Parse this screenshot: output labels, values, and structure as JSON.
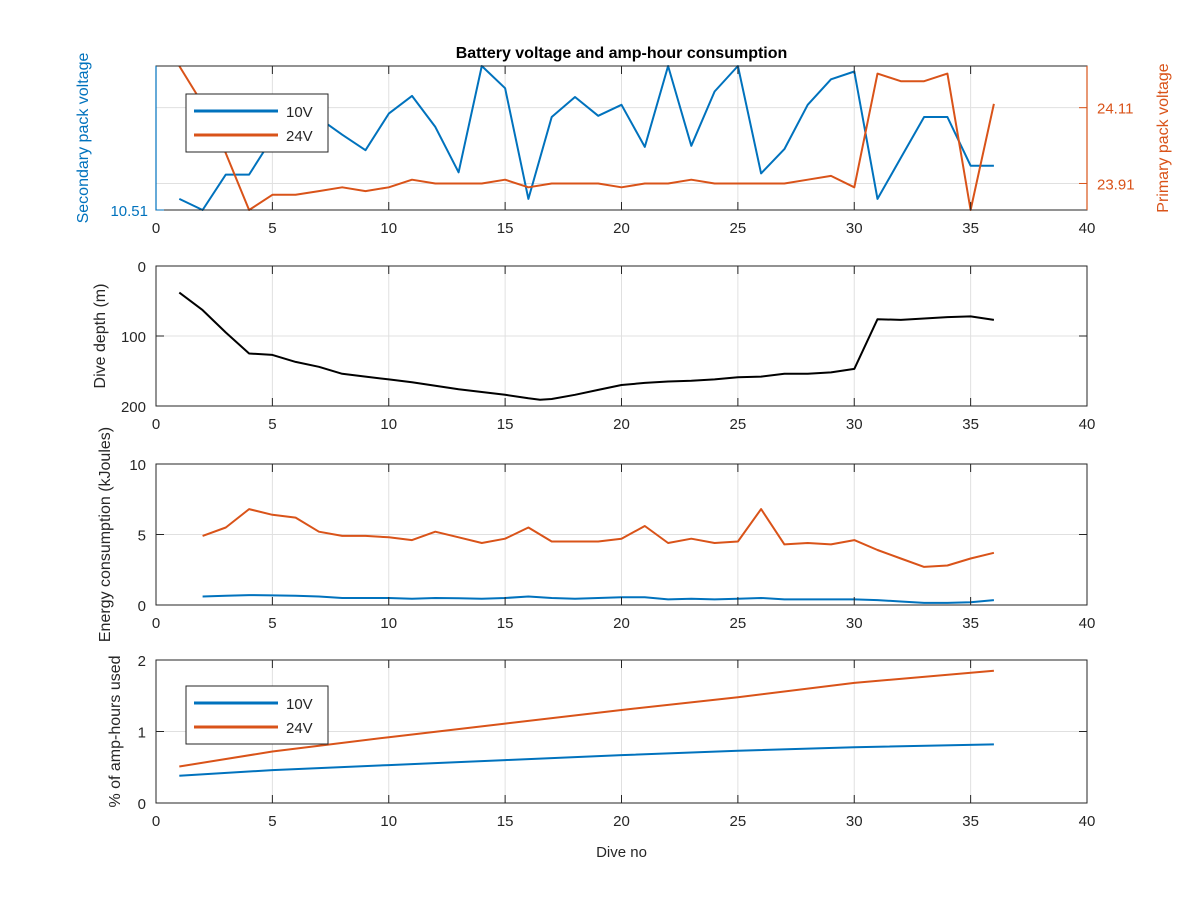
{
  "colors": {
    "c10": "#0072bd",
    "c24": "#d95319",
    "black": "#000000",
    "grid": "#e0e0e0",
    "axis": "#262626"
  },
  "chart_data": [
    {
      "type": "line",
      "title": "Battery voltage and amp-hour consumption",
      "xlabel": "",
      "ylabel_left": "Secondary pack voltage",
      "ylabel_right": "Primary pack voltage",
      "xlim": [
        0,
        40
      ],
      "xticks": [
        "0",
        "5",
        "10",
        "15",
        "20",
        "25",
        "30",
        "35",
        "40"
      ],
      "yticks_left": [
        "10.51"
      ],
      "yticks_right": [
        "23.91",
        "24.11"
      ],
      "grid": true,
      "legend": {
        "position": "top-left",
        "entries": [
          "10V",
          "24V"
        ]
      },
      "series": [
        {
          "name": "10V",
          "axis": "left",
          "color": "#0072bd",
          "x": [
            1,
            2,
            3,
            4,
            5,
            6,
            7,
            8,
            9,
            10,
            11,
            12,
            13,
            14,
            15,
            16,
            17,
            18,
            19,
            20,
            21,
            22,
            23,
            24,
            25,
            26,
            27,
            28,
            29,
            30,
            31,
            32,
            33,
            34,
            35,
            36
          ],
          "y": [
            10.52,
            10.51,
            10.542,
            10.542,
            10.575,
            10.598,
            10.593,
            10.578,
            10.564,
            10.597,
            10.613,
            10.585,
            10.544,
            10.64,
            10.62,
            10.52,
            10.594,
            10.612,
            10.595,
            10.605,
            10.567,
            10.64,
            10.568,
            10.617,
            10.64,
            10.543,
            10.565,
            10.605,
            10.628,
            10.635,
            10.52,
            10.557,
            10.594,
            10.594,
            10.55,
            10.55
          ]
        },
        {
          "name": "24V",
          "axis": "right",
          "color": "#d95319",
          "x": [
            1,
            2,
            3,
            4,
            5,
            6,
            7,
            8,
            9,
            10,
            11,
            12,
            13,
            14,
            15,
            16,
            17,
            18,
            19,
            20,
            21,
            22,
            23,
            24,
            25,
            26,
            27,
            28,
            29,
            30,
            31,
            32,
            33,
            34,
            35,
            36
          ],
          "y": [
            24.22,
            24.12,
            23.99,
            23.84,
            23.88,
            23.88,
            23.89,
            23.9,
            23.89,
            23.9,
            23.92,
            23.91,
            23.91,
            23.91,
            23.92,
            23.9,
            23.91,
            23.91,
            23.91,
            23.9,
            23.91,
            23.91,
            23.92,
            23.91,
            23.91,
            23.91,
            23.91,
            23.92,
            23.93,
            23.9,
            24.2,
            24.18,
            24.18,
            24.2,
            23.84,
            24.12
          ]
        }
      ]
    },
    {
      "type": "line",
      "xlabel": "",
      "ylabel": "Dive depth (m)",
      "xlim": [
        0,
        40
      ],
      "ylim": [
        0,
        200
      ],
      "y_reversed": true,
      "xticks": [
        "0",
        "5",
        "10",
        "15",
        "20",
        "25",
        "30",
        "35",
        "40"
      ],
      "yticks": [
        "0",
        "100",
        "200"
      ],
      "grid": true,
      "series": [
        {
          "color": "#000000",
          "x": [
            1,
            2,
            3,
            4,
            5,
            6,
            7,
            8,
            9,
            10,
            11,
            12,
            13,
            14,
            15,
            16,
            16.5,
            17,
            18,
            19,
            20,
            21,
            22,
            23,
            24,
            25,
            26,
            27,
            28,
            29,
            30,
            31,
            32,
            33,
            34,
            35,
            36
          ],
          "y": [
            38,
            63,
            95,
            125,
            127,
            137,
            144,
            154,
            158,
            162,
            166,
            171,
            176,
            180,
            184,
            189,
            191,
            190,
            184,
            177,
            170,
            167,
            165,
            164,
            162,
            159,
            158,
            154,
            154,
            152,
            147,
            76,
            77,
            75,
            73,
            72,
            77
          ]
        }
      ]
    },
    {
      "type": "line",
      "xlabel": "",
      "ylabel": "Energy consumption (kJoules)",
      "xlim": [
        0,
        40
      ],
      "ylim": [
        0,
        10
      ],
      "xticks": [
        "0",
        "5",
        "10",
        "15",
        "20",
        "25",
        "30",
        "35",
        "40"
      ],
      "yticks": [
        "0",
        "5",
        "10"
      ],
      "grid": true,
      "series": [
        {
          "name": "10V",
          "color": "#0072bd",
          "x": [
            2,
            3,
            4,
            5,
            6,
            7,
            8,
            9,
            10,
            11,
            12,
            13,
            14,
            15,
            16,
            17,
            18,
            19,
            20,
            21,
            22,
            23,
            24,
            25,
            26,
            27,
            28,
            29,
            30,
            31,
            32,
            33,
            34,
            35,
            36
          ],
          "y": [
            0.6,
            0.65,
            0.7,
            0.68,
            0.65,
            0.6,
            0.5,
            0.5,
            0.5,
            0.45,
            0.5,
            0.48,
            0.45,
            0.5,
            0.6,
            0.5,
            0.45,
            0.5,
            0.55,
            0.55,
            0.4,
            0.45,
            0.4,
            0.45,
            0.5,
            0.4,
            0.4,
            0.4,
            0.4,
            0.35,
            0.25,
            0.15,
            0.15,
            0.2,
            0.35
          ]
        },
        {
          "name": "24V",
          "color": "#d95319",
          "x": [
            2,
            3,
            4,
            5,
            6,
            7,
            8,
            9,
            10,
            11,
            12,
            13,
            14,
            15,
            16,
            17,
            18,
            19,
            20,
            21,
            22,
            23,
            24,
            25,
            26,
            27,
            28,
            29,
            30,
            31,
            32,
            33,
            34,
            35,
            36
          ],
          "y": [
            4.9,
            5.5,
            6.8,
            6.4,
            6.2,
            5.2,
            4.9,
            4.9,
            4.8,
            4.6,
            5.2,
            4.8,
            4.4,
            4.7,
            5.5,
            4.5,
            4.5,
            4.5,
            4.7,
            5.6,
            4.4,
            4.7,
            4.4,
            4.5,
            6.8,
            4.3,
            4.4,
            4.3,
            4.6,
            3.9,
            3.3,
            2.7,
            2.8,
            3.3,
            3.7
          ]
        }
      ]
    },
    {
      "type": "line",
      "xlabel": "Dive no",
      "ylabel": "% of amp-hours used",
      "xlim": [
        0,
        40
      ],
      "ylim": [
        0,
        2
      ],
      "xticks": [
        "0",
        "5",
        "10",
        "15",
        "20",
        "25",
        "30",
        "35",
        "40"
      ],
      "yticks": [
        "0",
        "1",
        "2"
      ],
      "grid": true,
      "legend": {
        "position": "left",
        "entries": [
          "10V",
          "24V"
        ]
      },
      "series": [
        {
          "name": "10V",
          "color": "#0072bd",
          "x": [
            1,
            5,
            10,
            15,
            20,
            25,
            30,
            36
          ],
          "y": [
            0.38,
            0.46,
            0.53,
            0.6,
            0.67,
            0.73,
            0.78,
            0.82
          ]
        },
        {
          "name": "24V",
          "color": "#d95319",
          "x": [
            1,
            5,
            10,
            15,
            20,
            25,
            30,
            36
          ],
          "y": [
            0.51,
            0.72,
            0.92,
            1.11,
            1.3,
            1.48,
            1.68,
            1.85
          ]
        }
      ]
    }
  ]
}
